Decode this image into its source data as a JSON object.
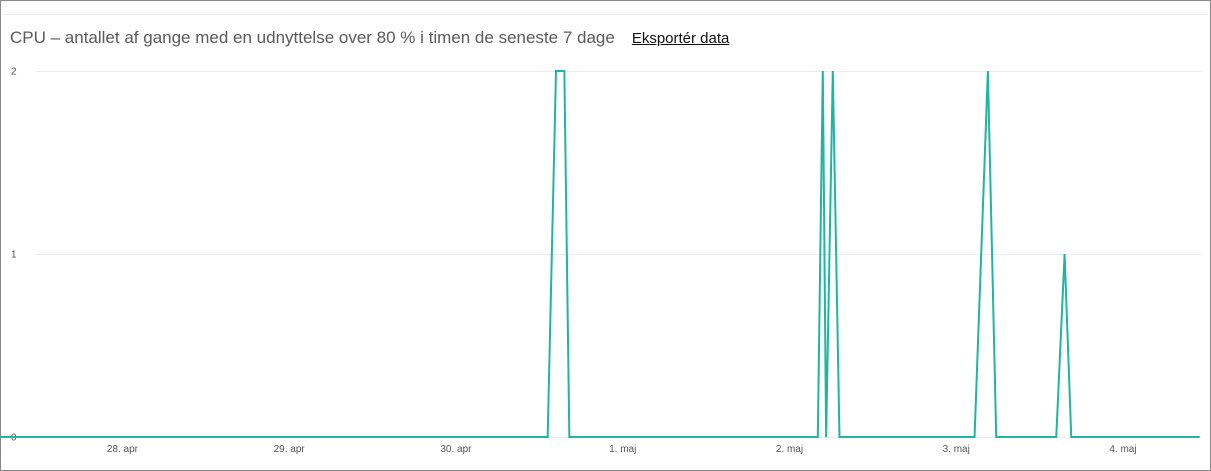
{
  "header": {
    "title": "CPU – antallet af gange med en udnyttelse over 80 % i timen de seneste 7 dage",
    "export_label": "Eksportér data"
  },
  "colors": {
    "series": "#1fb5a3",
    "grid": "#ececec",
    "axis_text": "#555555",
    "title": "#5a5a5a"
  },
  "chart_data": {
    "type": "line",
    "title": "CPU – antallet af gange med en udnyttelse over 80 % i timen de seneste 7 dage",
    "xlabel": "",
    "ylabel": "",
    "ylim": [
      0,
      2
    ],
    "y_ticks": [
      0,
      1,
      2
    ],
    "x_ticks": [
      {
        "label": "28. apr",
        "day": 1
      },
      {
        "label": "29. apr",
        "day": 2
      },
      {
        "label": "30. apr",
        "day": 3
      },
      {
        "label": "1. maj",
        "day": 4
      },
      {
        "label": "2. maj",
        "day": 5
      },
      {
        "label": "3. maj",
        "day": 6
      },
      {
        "label": "4. maj",
        "day": 7
      }
    ],
    "grid": true,
    "legend": "none",
    "series": [
      {
        "points": [
          [
            0.0,
            0
          ],
          [
            3.55,
            0
          ],
          [
            3.6,
            2
          ],
          [
            3.65,
            2
          ],
          [
            3.68,
            0
          ],
          [
            5.17,
            0
          ],
          [
            5.2,
            2
          ],
          [
            5.22,
            0
          ],
          [
            5.26,
            2
          ],
          [
            5.3,
            0
          ],
          [
            6.11,
            0
          ],
          [
            6.19,
            2
          ],
          [
            6.24,
            0
          ],
          [
            6.6,
            0
          ],
          [
            6.65,
            1
          ],
          [
            6.69,
            0
          ],
          [
            7.46,
            0
          ]
        ]
      }
    ]
  }
}
